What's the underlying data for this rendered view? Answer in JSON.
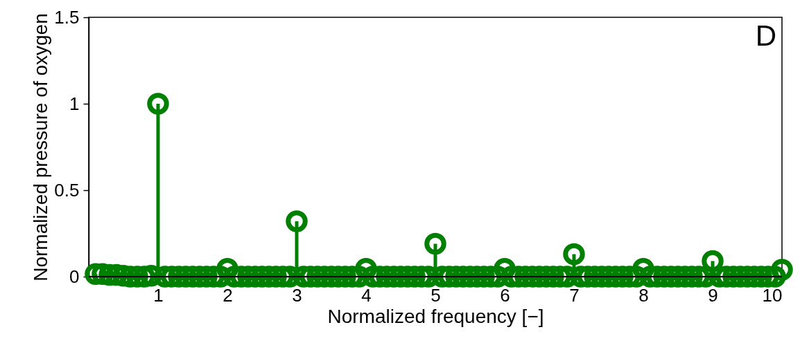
{
  "chart_data": {
    "type": "lollipop",
    "xlabel": "Normalized frequency [−]",
    "ylabel": "Normalized pressure of oxygen",
    "annotations": [
      "D"
    ],
    "x": [
      0.1,
      0.2,
      0.3,
      0.4,
      0.5,
      0.6,
      0.7,
      0.8,
      0.9,
      1.0,
      1.1,
      1.2,
      1.3,
      1.4,
      1.5,
      1.6,
      1.7,
      1.8,
      1.9,
      2.0,
      2.1,
      2.2,
      2.3,
      2.4,
      2.5,
      2.6,
      2.7,
      2.8,
      2.9,
      3.0,
      3.1,
      3.2,
      3.3,
      3.4,
      3.5,
      3.6,
      3.7,
      3.8,
      3.9,
      4.0,
      4.1,
      4.2,
      4.3,
      4.4,
      4.5,
      4.6,
      4.7,
      4.8,
      4.9,
      5.0,
      5.1,
      5.2,
      5.3,
      5.4,
      5.5,
      5.6,
      5.7,
      5.8,
      5.9,
      6.0,
      6.1,
      6.2,
      6.3,
      6.4,
      6.5,
      6.6,
      6.7,
      6.8,
      6.9,
      7.0,
      7.1,
      7.2,
      7.3,
      7.4,
      7.5,
      7.6,
      7.7,
      7.8,
      7.9,
      8.0,
      8.1,
      8.2,
      8.3,
      8.4,
      8.5,
      8.6,
      8.7,
      8.8,
      8.9,
      9.0,
      9.1,
      9.2,
      9.3,
      9.4,
      9.5,
      9.6,
      9.7,
      9.8,
      9.9,
      10.0
    ],
    "series": [
      {
        "color": "#008000",
        "values": [
          0.015,
          0.015,
          0.01,
          0.01,
          0.005,
          0,
          0,
          0,
          0.005,
          1.0,
          0,
          0,
          0,
          0,
          0,
          0,
          0,
          0,
          0,
          0.045,
          0,
          0,
          0,
          0,
          0,
          0,
          0,
          0,
          0,
          0.32,
          0,
          0,
          0,
          0,
          0,
          0,
          0,
          0,
          0,
          0.045,
          0,
          0,
          0,
          0,
          0,
          0,
          0,
          0,
          0,
          0.19,
          0,
          0,
          0,
          0,
          0,
          0,
          0,
          0,
          0,
          0.045,
          0,
          0,
          0,
          0,
          0,
          0,
          0,
          0,
          0,
          0.13,
          0,
          0,
          0,
          0,
          0,
          0,
          0,
          0,
          0,
          0.045,
          0,
          0,
          0,
          0,
          0,
          0,
          0,
          0,
          0,
          0.09,
          0,
          0,
          0,
          0,
          0,
          0,
          0,
          0,
          0,
          0.04
        ]
      }
    ],
    "xlim": [
      0,
      10
    ],
    "xticks": [
      1,
      2,
      3,
      4,
      5,
      6,
      7,
      8,
      9,
      10
    ],
    "ylim": [
      0,
      1.5
    ],
    "yticks": [
      0,
      0.5,
      1,
      1.5
    ],
    "marker": "circle",
    "grid": false
  }
}
